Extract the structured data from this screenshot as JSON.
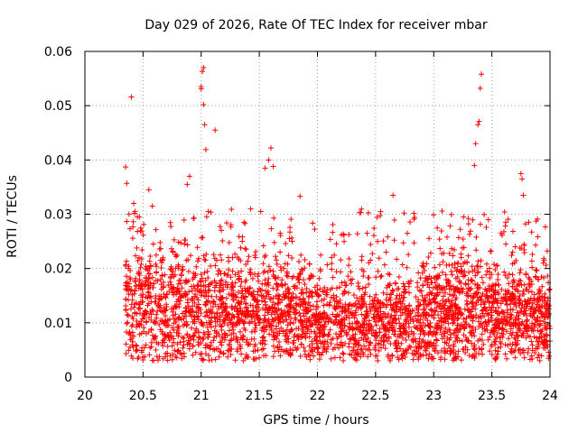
{
  "chart_data": {
    "type": "scatter",
    "title": "Day 029 of 2026, Rate Of TEC Index for receiver mbar",
    "xlabel": "GPS time / hours",
    "ylabel": "ROTI / TECUs",
    "xlim": [
      20,
      24
    ],
    "ylim": [
      0,
      0.06
    ],
    "x_ticks": [
      "20",
      "20.5",
      "21",
      "21.5",
      "22",
      "22.5",
      "23",
      "23.5",
      "24"
    ],
    "y_ticks": [
      "0",
      "0.01",
      "0.02",
      "0.03",
      "0.04",
      "0.05",
      "0.06"
    ],
    "grid": true,
    "marker": "+",
    "series": [
      {
        "name": "ROTI",
        "color": "#ff0000",
        "points": [
          [
            20.35,
            0.0387
          ],
          [
            20.36,
            0.0357
          ],
          [
            20.4,
            0.0516
          ],
          [
            20.42,
            0.032
          ],
          [
            20.55,
            0.0345
          ],
          [
            20.58,
            0.0315
          ],
          [
            20.88,
            0.0355
          ],
          [
            20.9,
            0.037
          ],
          [
            21.0,
            0.0535
          ],
          [
            21.0,
            0.0531
          ],
          [
            21.01,
            0.0563
          ],
          [
            21.02,
            0.057
          ],
          [
            21.02,
            0.0502
          ],
          [
            21.03,
            0.0465
          ],
          [
            21.04,
            0.0419
          ],
          [
            21.12,
            0.0455
          ],
          [
            21.55,
            0.0385
          ],
          [
            21.58,
            0.04
          ],
          [
            21.6,
            0.0422
          ],
          [
            21.62,
            0.0388
          ],
          [
            21.85,
            0.0333
          ],
          [
            22.65,
            0.0335
          ],
          [
            23.35,
            0.039
          ],
          [
            23.36,
            0.043
          ],
          [
            23.38,
            0.0465
          ],
          [
            23.39,
            0.0471
          ],
          [
            23.4,
            0.0532
          ],
          [
            23.41,
            0.0558
          ],
          [
            23.75,
            0.0375
          ],
          [
            23.76,
            0.0365
          ],
          [
            23.77,
            0.0335
          ]
        ],
        "bulk_description": "dense cloud of points spanning x 20.35 to 24.0 with values mostly between 0.003 and 0.03"
      }
    ]
  }
}
